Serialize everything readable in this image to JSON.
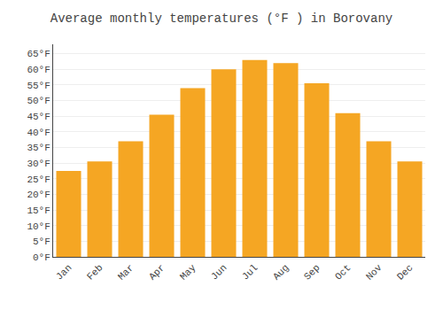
{
  "chart_data": {
    "type": "bar",
    "title": "Average monthly temperatures (°F ) in Borovany",
    "categories": [
      "Jan",
      "Feb",
      "Mar",
      "Apr",
      "May",
      "Jun",
      "Jul",
      "Aug",
      "Sep",
      "Oct",
      "Nov",
      "Dec"
    ],
    "values": [
      27.5,
      30.5,
      37.0,
      45.5,
      54.0,
      60.0,
      63.0,
      62.0,
      55.5,
      46.0,
      37.0,
      30.5
    ],
    "color": "#F5A623",
    "ylim": [
      0,
      68
    ],
    "yticks": [
      {
        "value": 0,
        "label": "0°F"
      },
      {
        "value": 5,
        "label": "5°F"
      },
      {
        "value": 10,
        "label": "10°F"
      },
      {
        "value": 15,
        "label": "15°F"
      },
      {
        "value": 20,
        "label": "20°F"
      },
      {
        "value": 25,
        "label": "25°F"
      },
      {
        "value": 30,
        "label": "30°F"
      },
      {
        "value": 35,
        "label": "35°F"
      },
      {
        "value": 40,
        "label": "40°F"
      },
      {
        "value": 45,
        "label": "45°F"
      },
      {
        "value": 50,
        "label": "50°F"
      },
      {
        "value": 55,
        "label": "55°F"
      },
      {
        "value": 60,
        "label": "60°F"
      },
      {
        "value": 65,
        "label": "65°F"
      }
    ],
    "grid": true
  }
}
